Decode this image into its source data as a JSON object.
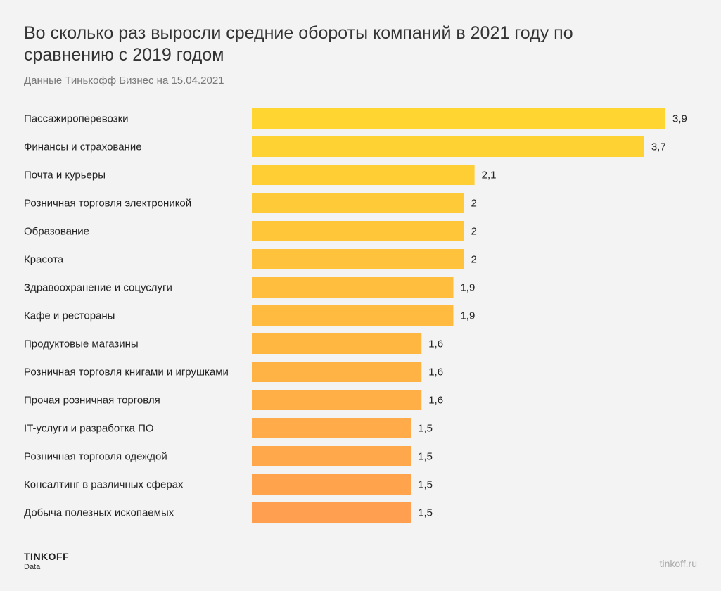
{
  "header": {
    "title": "Во сколько раз выросли средние обороты компаний в 2021 году по сравнению с 2019 годом",
    "subtitle": "Данные Тинькофф Бизнес на 15.04.2021"
  },
  "footer": {
    "brand": "TINKOFF",
    "brand_sub": "Data",
    "site": "tinkoff.ru"
  },
  "colors": {
    "bar_top": "#ffd631",
    "bar_bottom": "#ff9f4f"
  },
  "chart_data": {
    "type": "bar",
    "orientation": "horizontal",
    "title": "Во сколько раз выросли средние обороты компаний в 2021 году по сравнению с 2019 годом",
    "categories": [
      "Пассажироперевозки",
      "Финансы и страхование",
      "Почта и курьеры",
      "Розничная торговля электроникой",
      "Образование",
      "Красота",
      "Здравоохранение и соцуслуги",
      "Кафе и рестораны",
      "Продуктовые магазины",
      "Розничная торговля книгами и игрушками",
      "Прочая розничная торговля",
      "IT-услуги и разработка ПО",
      "Розничная торговля одеждой",
      "Консалтинг в различных сферах",
      "Добыча полезных ископаемых"
    ],
    "values": [
      3.9,
      3.7,
      2.1,
      2,
      2,
      2,
      1.9,
      1.9,
      1.6,
      1.6,
      1.6,
      1.5,
      1.5,
      1.5,
      1.5
    ],
    "value_labels": [
      "3,9",
      "3,7",
      "2,1",
      "2",
      "2",
      "2",
      "1,9",
      "1,9",
      "1,6",
      "1,6",
      "1,6",
      "1,5",
      "1,5",
      "1,5",
      "1,5"
    ],
    "xlim": [
      0,
      3.9
    ],
    "grid": false,
    "legend": "none"
  }
}
